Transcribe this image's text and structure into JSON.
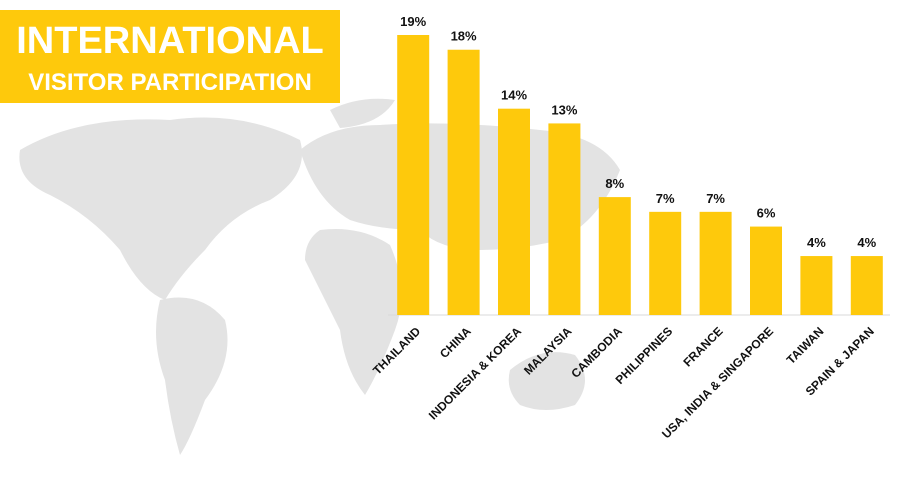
{
  "chart_data": {
    "type": "bar",
    "title": "INTERNATIONAL",
    "subtitle": "VISITOR PARTICIPATION",
    "categories": [
      "THAILAND",
      "CHINA",
      "INDONESIA & KOREA",
      "MALAYSIA",
      "CAMBODIA",
      "PHILIPPINES",
      "FRANCE",
      "USA, INDIA & SINGAPORE",
      "TAIWAN",
      "SPAIN & JAPAN"
    ],
    "values": [
      19,
      18,
      14,
      13,
      8,
      7,
      7,
      6,
      4,
      4
    ],
    "value_labels": [
      "19%",
      "18%",
      "14%",
      "13%",
      "8%",
      "7%",
      "7%",
      "6%",
      "4%",
      "4%"
    ],
    "color": "#fec90c"
  }
}
